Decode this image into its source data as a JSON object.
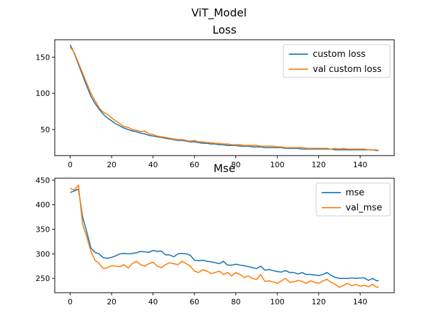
{
  "figure": {
    "suptitle": "ViT_Model"
  },
  "colors": {
    "series1": "#1f77b4",
    "series2": "#ff7f0e"
  },
  "chart_data": [
    {
      "type": "line",
      "title": "Loss",
      "xlabel": "",
      "ylabel": "",
      "xlim": [
        -7.45,
        156.45
      ],
      "ylim": [
        14.0,
        174.0
      ],
      "xticks": [
        0,
        20,
        40,
        60,
        80,
        100,
        120,
        140
      ],
      "yticks": [
        50,
        100,
        150
      ],
      "grid": false,
      "legend_position": "upper right",
      "series": [
        {
          "name": "custom loss",
          "color": "#1f77b4",
          "x": [
            0,
            2,
            4,
            6,
            8,
            10,
            12,
            14,
            16,
            18,
            20,
            22,
            24,
            26,
            28,
            30,
            32,
            34,
            36,
            38,
            40,
            42,
            44,
            46,
            48,
            50,
            52,
            54,
            56,
            58,
            60,
            62,
            64,
            66,
            68,
            70,
            72,
            74,
            76,
            78,
            80,
            82,
            84,
            86,
            88,
            90,
            92,
            94,
            96,
            98,
            100,
            102,
            104,
            106,
            108,
            110,
            112,
            114,
            116,
            118,
            120,
            122,
            124,
            126,
            128,
            130,
            132,
            134,
            136,
            138,
            140,
            142,
            144,
            146,
            148,
            149
          ],
          "y": [
            167,
            155,
            140,
            125,
            110,
            96,
            86,
            78,
            71,
            66,
            62,
            58,
            55,
            52,
            50,
            48,
            47,
            45,
            44,
            42,
            41,
            40,
            39,
            38,
            37,
            36,
            35,
            35,
            34,
            33,
            33,
            32,
            31,
            31,
            30,
            30,
            29,
            29,
            28,
            28,
            28,
            27,
            27,
            27,
            26,
            26,
            26,
            25,
            25,
            25,
            25,
            25,
            24,
            24,
            24,
            24,
            23,
            23,
            23,
            23,
            23,
            23,
            23,
            23,
            22,
            22,
            22,
            22,
            22,
            22,
            22,
            22,
            22,
            22,
            21,
            21
          ]
        },
        {
          "name": "val custom loss",
          "color": "#ff7f0e",
          "x": [
            0,
            2,
            4,
            6,
            8,
            10,
            12,
            14,
            16,
            18,
            20,
            22,
            24,
            26,
            28,
            30,
            32,
            34,
            36,
            38,
            40,
            42,
            44,
            46,
            48,
            50,
            52,
            54,
            56,
            58,
            60,
            62,
            64,
            66,
            68,
            70,
            72,
            74,
            76,
            78,
            80,
            82,
            84,
            86,
            88,
            90,
            92,
            94,
            96,
            98,
            100,
            102,
            104,
            106,
            108,
            110,
            112,
            114,
            116,
            118,
            120,
            122,
            124,
            126,
            128,
            130,
            132,
            134,
            136,
            138,
            140,
            142,
            144,
            146,
            148,
            149
          ],
          "y": [
            164,
            156,
            142,
            128,
            114,
            100,
            90,
            80,
            74,
            71,
            66,
            62,
            58,
            54,
            53,
            50,
            49,
            47,
            48,
            44,
            43,
            41,
            40,
            39,
            38,
            37,
            36,
            36,
            35,
            34,
            35,
            33,
            33,
            32,
            32,
            31,
            31,
            30,
            30,
            29,
            29,
            29,
            28,
            28,
            28,
            28,
            27,
            27,
            27,
            27,
            26,
            26,
            25,
            25,
            25,
            25,
            25,
            24,
            24,
            24,
            24,
            24,
            24,
            23,
            24,
            23,
            24,
            23,
            23,
            23,
            23,
            23,
            22,
            22,
            22,
            21
          ]
        }
      ]
    },
    {
      "type": "line",
      "title": "Mse",
      "xlabel": "",
      "ylabel": "",
      "xlim": [
        -7.45,
        156.45
      ],
      "ylim": [
        221.0,
        454.0
      ],
      "xticks": [
        0,
        20,
        40,
        60,
        80,
        100,
        120,
        140
      ],
      "yticks": [
        250,
        300,
        350,
        400,
        450
      ],
      "grid": false,
      "legend_position": "upper right",
      "series": [
        {
          "name": "mse",
          "color": "#1f77b4",
          "x": [
            0,
            2,
            4,
            6,
            8,
            10,
            12,
            14,
            16,
            18,
            20,
            22,
            24,
            26,
            28,
            30,
            32,
            34,
            36,
            38,
            40,
            42,
            44,
            46,
            48,
            50,
            52,
            54,
            56,
            58,
            60,
            62,
            64,
            66,
            68,
            70,
            72,
            74,
            76,
            78,
            80,
            82,
            84,
            86,
            88,
            90,
            92,
            94,
            96,
            98,
            100,
            102,
            104,
            106,
            108,
            110,
            112,
            114,
            116,
            118,
            120,
            122,
            124,
            126,
            128,
            130,
            132,
            134,
            136,
            138,
            140,
            142,
            144,
            146,
            148,
            149
          ],
          "y": [
            425,
            428,
            432,
            375,
            345,
            312,
            303,
            300,
            292,
            291,
            293,
            296,
            300,
            301,
            300,
            301,
            302,
            305,
            304,
            303,
            307,
            305,
            306,
            298,
            298,
            294,
            300,
            301,
            300,
            297,
            287,
            286,
            287,
            285,
            284,
            282,
            280,
            285,
            277,
            277,
            279,
            277,
            276,
            274,
            272,
            270,
            275,
            267,
            268,
            266,
            264,
            263,
            266,
            262,
            262,
            259,
            262,
            258,
            258,
            257,
            256,
            258,
            262,
            256,
            252,
            250,
            250,
            250,
            251,
            250,
            251,
            251,
            246,
            250,
            245,
            246
          ]
        },
        {
          "name": "val_mse",
          "color": "#ff7f0e",
          "x": [
            0,
            2,
            4,
            6,
            8,
            10,
            12,
            14,
            16,
            18,
            20,
            22,
            24,
            26,
            28,
            30,
            32,
            34,
            36,
            38,
            40,
            42,
            44,
            46,
            48,
            50,
            52,
            54,
            56,
            58,
            60,
            62,
            64,
            66,
            68,
            70,
            72,
            74,
            76,
            78,
            80,
            82,
            84,
            86,
            88,
            90,
            92,
            94,
            96,
            98,
            100,
            102,
            104,
            106,
            108,
            110,
            112,
            114,
            116,
            118,
            120,
            122,
            124,
            126,
            128,
            130,
            132,
            134,
            136,
            138,
            140,
            142,
            144,
            146,
            148,
            149
          ],
          "y": [
            433,
            430,
            440,
            360,
            335,
            305,
            287,
            280,
            270,
            272,
            276,
            275,
            274,
            278,
            271,
            280,
            285,
            278,
            275,
            280,
            283,
            275,
            272,
            278,
            282,
            280,
            278,
            285,
            280,
            275,
            265,
            262,
            268,
            265,
            260,
            262,
            265,
            258,
            262,
            255,
            262,
            258,
            252,
            255,
            250,
            248,
            258,
            244,
            245,
            243,
            240,
            245,
            250,
            242,
            243,
            246,
            244,
            240,
            245,
            242,
            240,
            245,
            248,
            242,
            238,
            232,
            236,
            240,
            235,
            238,
            234,
            236,
            233,
            238,
            232,
            233
          ]
        }
      ]
    }
  ]
}
